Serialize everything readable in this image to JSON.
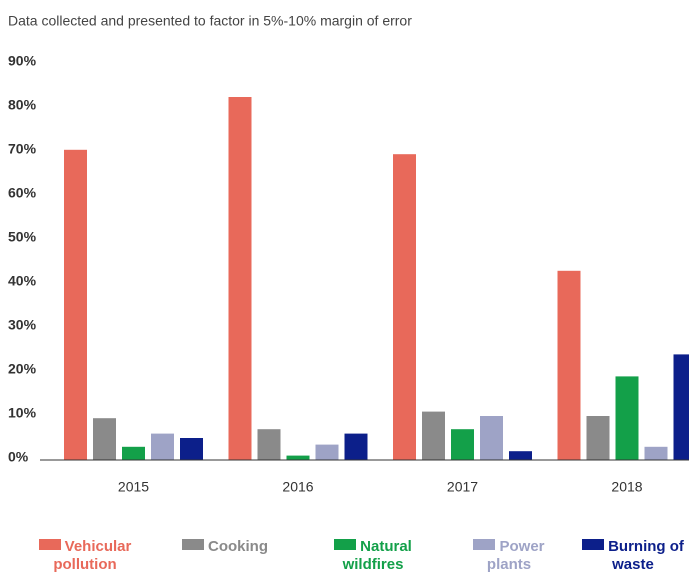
{
  "chart_data": {
    "type": "bar",
    "subtitle": "Data collected and presented to factor in 5%-10% margin of error",
    "categories": [
      "2015",
      "2016",
      "2017",
      "2018"
    ],
    "series": [
      {
        "name": "Vehicular pollution",
        "color": "#e8695a",
        "values": [
          70.5,
          82.5,
          69.5,
          43
        ]
      },
      {
        "name": "Cooking",
        "color": "#8a8a8a",
        "values": [
          9.5,
          7,
          11,
          10
        ]
      },
      {
        "name": "Natural wildfires",
        "color": "#13a049",
        "values": [
          3,
          1,
          7,
          19
        ]
      },
      {
        "name": "Power plants",
        "color": "#9ea3c6",
        "values": [
          6,
          3.5,
          10,
          3
        ]
      },
      {
        "name": "Burning of waste",
        "color": "#0c1f8a",
        "values": [
          5,
          6,
          2,
          24
        ]
      }
    ],
    "ylim": [
      0,
      90
    ],
    "yticks": [
      {
        "value": 0,
        "label": "0%"
      },
      {
        "value": 10,
        "label": "10%"
      },
      {
        "value": 20,
        "label": "20%"
      },
      {
        "value": 30,
        "label": "30%"
      },
      {
        "value": 40,
        "label": "40%"
      },
      {
        "value": 50,
        "label": "50%"
      },
      {
        "value": 60,
        "label": "60%"
      },
      {
        "value": 70,
        "label": "70%"
      },
      {
        "value": 80,
        "label": "80%"
      },
      {
        "value": 90,
        "label": "90%"
      }
    ],
    "legend": "bottom"
  }
}
